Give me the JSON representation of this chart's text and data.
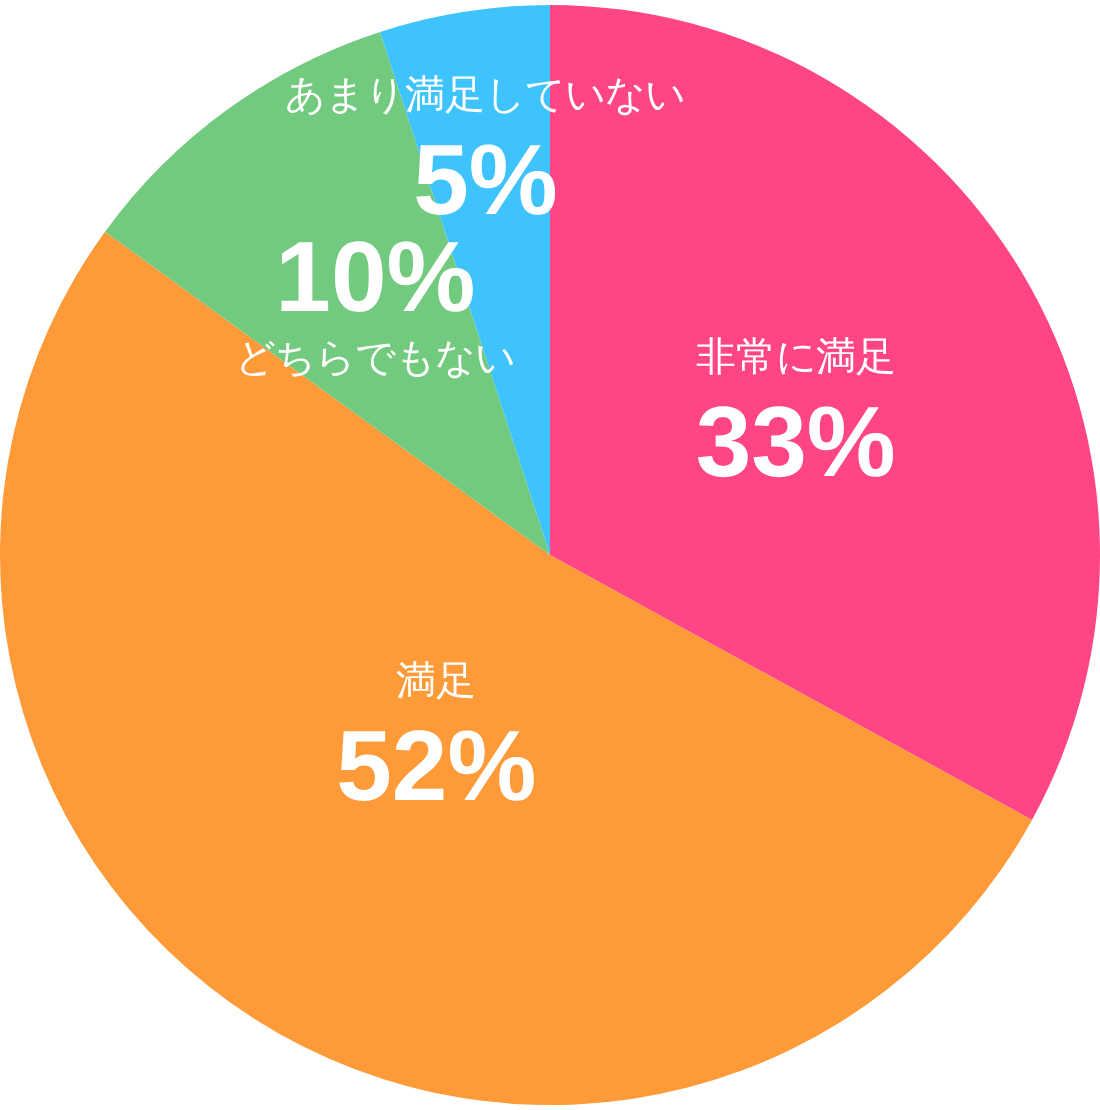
{
  "chart_data": {
    "type": "pie",
    "categories": [
      "非常に満足",
      "満足",
      "どちらでもない",
      "あまり満足していない"
    ],
    "values": [
      33,
      52,
      10,
      5
    ],
    "colors": [
      "#ff4585",
      "#fe9a37",
      "#72ca7f",
      "#3ec3fd"
    ],
    "value_labels": [
      "33%",
      "52%",
      "10%",
      "5%"
    ]
  }
}
